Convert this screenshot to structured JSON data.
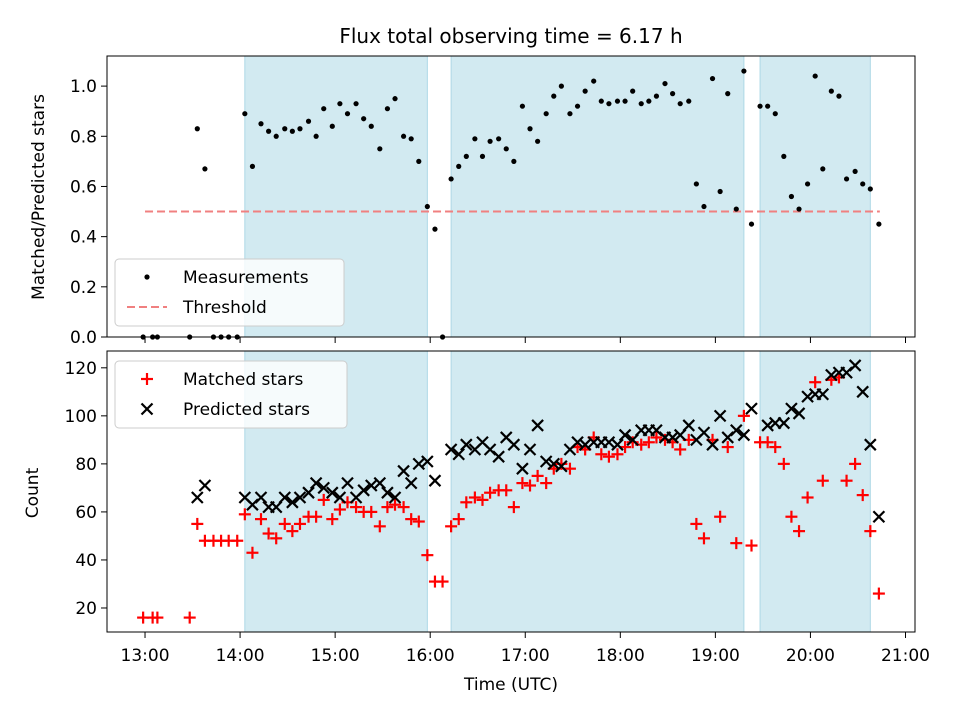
{
  "colors": {
    "band": "#add8e6",
    "measurement": "#000000",
    "threshold": "#f08080",
    "matched": "#ff0000",
    "predicted": "#000000"
  },
  "chart_data": [
    {
      "type": "scatter",
      "title": "Flux total observing time = 6.17 h",
      "xlabel": "",
      "ylabel": "Matched/Predicted stars",
      "xlim": [
        12.6,
        21.1
      ],
      "ylim": [
        0,
        1.12
      ],
      "yticks": [
        0.0,
        0.2,
        0.4,
        0.6,
        0.8,
        1.0
      ],
      "ytick_labels": [
        "0.0",
        "0.2",
        "0.4",
        "0.6",
        "0.8",
        "1.0"
      ],
      "legend_position": "lower-left",
      "observing_windows": [
        [
          14.05,
          15.97
        ],
        [
          16.22,
          19.3
        ],
        [
          19.47,
          20.63
        ]
      ],
      "threshold": {
        "name": "Threshold",
        "x": [
          13.0,
          20.73
        ],
        "y": 0.5
      },
      "series": [
        {
          "name": "Measurements",
          "x": [
            12.98,
            13.08,
            13.13,
            13.47,
            13.55,
            13.63,
            13.72,
            13.8,
            13.88,
            13.97,
            14.05,
            14.13,
            14.22,
            14.3,
            14.38,
            14.47,
            14.55,
            14.63,
            14.72,
            14.8,
            14.88,
            14.97,
            15.05,
            15.13,
            15.22,
            15.3,
            15.38,
            15.47,
            15.55,
            15.63,
            15.72,
            15.8,
            15.88,
            15.97,
            16.05,
            16.13,
            16.22,
            16.3,
            16.38,
            16.47,
            16.55,
            16.63,
            16.72,
            16.8,
            16.88,
            16.97,
            17.05,
            17.13,
            17.22,
            17.3,
            17.38,
            17.47,
            17.55,
            17.63,
            17.72,
            17.8,
            17.88,
            17.97,
            18.05,
            18.13,
            18.22,
            18.3,
            18.38,
            18.47,
            18.55,
            18.63,
            18.72,
            18.8,
            18.88,
            18.97,
            19.05,
            19.13,
            19.22,
            19.3,
            19.38,
            19.47,
            19.55,
            19.63,
            19.72,
            19.8,
            19.88,
            19.97,
            20.05,
            20.13,
            20.22,
            20.3,
            20.38,
            20.47,
            20.55,
            20.63,
            20.72
          ],
          "y": [
            0.0,
            0.0,
            0.0,
            0.0,
            0.83,
            0.67,
            0.0,
            0.0,
            0.0,
            0.0,
            0.89,
            0.68,
            0.85,
            0.82,
            0.8,
            0.83,
            0.82,
            0.83,
            0.86,
            0.8,
            0.91,
            0.84,
            0.93,
            0.89,
            0.93,
            0.87,
            0.84,
            0.75,
            0.91,
            0.95,
            0.8,
            0.79,
            0.7,
            0.52,
            0.43,
            0.0,
            0.63,
            0.68,
            0.72,
            0.79,
            0.72,
            0.78,
            0.79,
            0.75,
            0.7,
            0.92,
            0.83,
            0.78,
            0.89,
            0.96,
            1.0,
            0.89,
            0.92,
            0.98,
            1.02,
            0.94,
            0.93,
            0.94,
            0.94,
            0.98,
            0.93,
            0.94,
            0.96,
            1.01,
            0.97,
            0.93,
            0.94,
            0.61,
            0.52,
            1.03,
            0.58,
            0.97,
            0.51,
            1.06,
            0.45,
            0.92,
            0.92,
            0.89,
            0.72,
            0.56,
            0.51,
            0.61,
            1.04,
            0.67,
            0.98,
            0.96,
            0.63,
            0.66,
            0.61,
            0.59,
            0.45
          ]
        }
      ]
    },
    {
      "type": "scatter",
      "title": "",
      "xlabel": "Time (UTC)",
      "ylabel": "Count",
      "xlim": [
        12.6,
        21.1
      ],
      "ylim": [
        10,
        127
      ],
      "xticks": [
        13,
        14,
        15,
        16,
        17,
        18,
        19,
        20,
        21
      ],
      "xtick_labels": [
        "13:00",
        "14:00",
        "15:00",
        "16:00",
        "17:00",
        "18:00",
        "19:00",
        "20:00",
        "21:00"
      ],
      "yticks": [
        20,
        40,
        60,
        80,
        100,
        120
      ],
      "ytick_labels": [
        "20",
        "40",
        "60",
        "80",
        "100",
        "120"
      ],
      "legend_position": "upper-left",
      "observing_windows": [
        [
          14.05,
          15.97
        ],
        [
          16.22,
          19.3
        ],
        [
          19.47,
          20.63
        ]
      ],
      "series": [
        {
          "name": "Matched stars",
          "marker": "plus",
          "x": [
            12.98,
            13.08,
            13.13,
            13.47,
            13.55,
            13.63,
            13.72,
            13.8,
            13.88,
            13.97,
            14.05,
            14.13,
            14.22,
            14.3,
            14.38,
            14.47,
            14.55,
            14.63,
            14.72,
            14.8,
            14.88,
            14.97,
            15.05,
            15.13,
            15.22,
            15.3,
            15.38,
            15.47,
            15.55,
            15.63,
            15.72,
            15.8,
            15.88,
            15.97,
            16.05,
            16.13,
            16.22,
            16.3,
            16.38,
            16.47,
            16.55,
            16.63,
            16.72,
            16.8,
            16.88,
            16.97,
            17.05,
            17.13,
            17.22,
            17.3,
            17.38,
            17.47,
            17.55,
            17.63,
            17.72,
            17.8,
            17.88,
            17.97,
            18.05,
            18.13,
            18.22,
            18.3,
            18.38,
            18.47,
            18.55,
            18.63,
            18.72,
            18.8,
            18.88,
            18.97,
            19.05,
            19.13,
            19.22,
            19.3,
            19.38,
            19.47,
            19.55,
            19.63,
            19.72,
            19.8,
            19.88,
            19.97,
            20.05,
            20.13,
            20.22,
            20.3,
            20.38,
            20.47,
            20.55,
            20.63,
            20.72
          ],
          "y": [
            16,
            16,
            16,
            16,
            55,
            48,
            48,
            48,
            48,
            48,
            59,
            43,
            57,
            51,
            49,
            55,
            52,
            55,
            58,
            58,
            65,
            57,
            61,
            64,
            62,
            60,
            60,
            54,
            62,
            63,
            62,
            57,
            56,
            42,
            31,
            31,
            54,
            57,
            64,
            66,
            65,
            68,
            69,
            69,
            62,
            72,
            71,
            75,
            72,
            78,
            80,
            78,
            87,
            86,
            91,
            84,
            83,
            84,
            87,
            89,
            88,
            89,
            91,
            90,
            89,
            86,
            90,
            55,
            49,
            90,
            58,
            87,
            47,
            100,
            46,
            89,
            89,
            87,
            80,
            58,
            52,
            66,
            114,
            73,
            115,
            116,
            73,
            80,
            67,
            52,
            26
          ]
        },
        {
          "name": "Predicted stars",
          "marker": "x",
          "x": [
            13.55,
            13.63,
            14.05,
            14.13,
            14.22,
            14.3,
            14.38,
            14.47,
            14.55,
            14.63,
            14.72,
            14.8,
            14.88,
            14.97,
            15.05,
            15.13,
            15.22,
            15.3,
            15.38,
            15.47,
            15.55,
            15.63,
            15.72,
            15.8,
            15.88,
            15.97,
            16.05,
            16.22,
            16.3,
            16.38,
            16.47,
            16.55,
            16.63,
            16.72,
            16.8,
            16.88,
            16.97,
            17.05,
            17.13,
            17.22,
            17.3,
            17.38,
            17.47,
            17.55,
            17.63,
            17.72,
            17.8,
            17.88,
            17.97,
            18.05,
            18.13,
            18.22,
            18.3,
            18.38,
            18.47,
            18.55,
            18.63,
            18.72,
            18.8,
            18.88,
            18.97,
            19.05,
            19.13,
            19.22,
            19.3,
            19.38,
            19.55,
            19.63,
            19.72,
            19.8,
            19.88,
            19.97,
            20.05,
            20.13,
            20.22,
            20.3,
            20.38,
            20.47,
            20.55,
            20.63,
            20.72
          ],
          "y": [
            66,
            71,
            66,
            63,
            66,
            62,
            62,
            66,
            64,
            66,
            68,
            72,
            70,
            68,
            66,
            72,
            66,
            69,
            71,
            72,
            68,
            66,
            77,
            72,
            80,
            81,
            73,
            86,
            84,
            88,
            86,
            89,
            86,
            83,
            91,
            88,
            78,
            86,
            96,
            81,
            80,
            79,
            86,
            89,
            88,
            89,
            89,
            89,
            88,
            92,
            90,
            94,
            94,
            94,
            91,
            91,
            92,
            96,
            90,
            93,
            88,
            100,
            91,
            94,
            92,
            103,
            96,
            97,
            97,
            103,
            101,
            108,
            109,
            109,
            117,
            118,
            118,
            121,
            110,
            88,
            58
          ]
        }
      ]
    }
  ]
}
